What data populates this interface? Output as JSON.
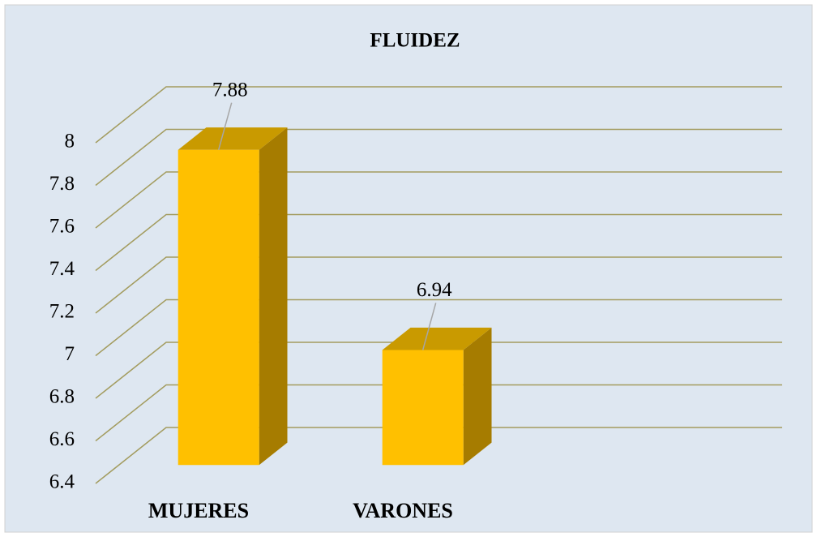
{
  "chart_data": {
    "type": "bar3d",
    "title": "FLUIDEZ",
    "categories": [
      "MUJERES",
      "VARONES"
    ],
    "values": [
      7.88,
      6.94
    ],
    "color": "#ffc000",
    "side_color": "#a67c00",
    "top_color": "#c99a00",
    "ylim": [
      6.4,
      8
    ],
    "yticks": [
      6.4,
      6.6,
      6.8,
      7,
      7.2,
      7.4,
      7.6,
      7.8,
      8
    ],
    "grid": true
  }
}
